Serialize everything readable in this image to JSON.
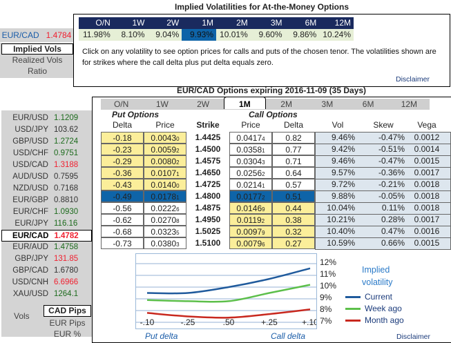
{
  "top": {
    "title": "Implied Volatilities for At-the-Money Options",
    "tenors": [
      "O/N",
      "1W",
      "2W",
      "1M",
      "2M",
      "3M",
      "6M",
      "12M"
    ],
    "vols": [
      "11.98%",
      "8.10%",
      "9.04%",
      "9.93%",
      "10.01%",
      "9.60%",
      "9.86%",
      "10.24%"
    ],
    "selected": "1M",
    "note": "Click on any volatility to see option prices for calls and puts of the chosen tenor. The volatilities shown are for strikes where the call delta plus put delta equals zero.",
    "disclaimer": "Disclaimer"
  },
  "left_top": {
    "pair": "EUR/CAD",
    "rate": "1.4784",
    "menu": [
      "Implied Vols",
      "Realized Vols",
      "Ratio"
    ]
  },
  "options": {
    "title": "EUR/CAD Options expiring 2016-11-09 (35 Days)",
    "tabs": [
      "O/N",
      "1W",
      "2W",
      "1M",
      "2M",
      "3M",
      "6M",
      "12M"
    ],
    "active_tab": "1M",
    "put_label": "Put Options",
    "call_label": "Call Options",
    "headers": {
      "put_delta": "Delta",
      "put_price": "Price",
      "strike": "Strike",
      "call_price": "Price",
      "call_delta": "Delta",
      "vol": "Vol",
      "skew": "Skew",
      "vega": "Vega"
    },
    "rows": [
      {
        "put_delta": "-0.18",
        "put_price": "0.0043",
        "put_price_sub": "0",
        "strike": "1.4425",
        "call_price": "0.0417",
        "call_price_sub": "4",
        "call_delta": "0.82",
        "vol": "9.46%",
        "skew": "-0.47%",
        "vega": "0.0012"
      },
      {
        "put_delta": "-0.23",
        "put_price": "0.0059",
        "put_price_sub": "2",
        "strike": "1.4500",
        "call_price": "0.0358",
        "call_price_sub": "1",
        "call_delta": "0.77",
        "vol": "9.42%",
        "skew": "-0.51%",
        "vega": "0.0014"
      },
      {
        "put_delta": "-0.29",
        "put_price": "0.0080",
        "put_price_sub": "2",
        "strike": "1.4575",
        "call_price": "0.0304",
        "call_price_sub": "3",
        "call_delta": "0.71",
        "vol": "9.46%",
        "skew": "-0.47%",
        "vega": "0.0015"
      },
      {
        "put_delta": "-0.36",
        "put_price": "0.0107",
        "put_price_sub": "1",
        "strike": "1.4650",
        "call_price": "0.0256",
        "call_price_sub": "2",
        "call_delta": "0.64",
        "vol": "9.57%",
        "skew": "-0.36%",
        "vega": "0.0017"
      },
      {
        "put_delta": "-0.43",
        "put_price": "0.0140",
        "put_price_sub": "0",
        "strike": "1.4725",
        "call_price": "0.0214",
        "call_price_sub": "1",
        "call_delta": "0.57",
        "vol": "9.72%",
        "skew": "-0.21%",
        "vega": "0.0018"
      },
      {
        "put_delta": "-0.49",
        "put_price": "0.0178",
        "put_price_sub": "1",
        "strike": "1.4800",
        "call_price": "0.0177",
        "call_price_sub": "2",
        "call_delta": "0.51",
        "vol": "9.88%",
        "skew": "-0.05%",
        "vega": "0.0018"
      },
      {
        "put_delta": "-0.56",
        "put_price": "0.0222",
        "put_price_sub": "6",
        "strike": "1.4875",
        "call_price": "0.0146",
        "call_price_sub": "9",
        "call_delta": "0.44",
        "vol": "10.04%",
        "skew": "0.11%",
        "vega": "0.0018"
      },
      {
        "put_delta": "-0.62",
        "put_price": "0.0270",
        "put_price_sub": "8",
        "strike": "1.4950",
        "call_price": "0.0119",
        "call_price_sub": "2",
        "call_delta": "0.38",
        "vol": "10.21%",
        "skew": "0.28%",
        "vega": "0.0017"
      },
      {
        "put_delta": "-0.68",
        "put_price": "0.0323",
        "put_price_sub": "5",
        "strike": "1.5025",
        "call_price": "0.0097",
        "call_price_sub": "9",
        "call_delta": "0.32",
        "vol": "10.40%",
        "skew": "0.47%",
        "vega": "0.0016"
      },
      {
        "put_delta": "-0.73",
        "put_price": "0.0380",
        "put_price_sub": "3",
        "strike": "1.5100",
        "call_price": "0.0079",
        "call_price_sub": "6",
        "call_delta": "0.27",
        "vol": "10.59%",
        "skew": "0.66%",
        "vega": "0.0015"
      }
    ],
    "disclaimer": "Disclaimer"
  },
  "pairs": [
    {
      "pair": "EUR/USD",
      "rate": "1.1209",
      "dir": "green"
    },
    {
      "pair": "USD/JPY",
      "rate": "103.62",
      "dir": "dark"
    },
    {
      "pair": "GBP/USD",
      "rate": "1.2724",
      "dir": "green"
    },
    {
      "pair": "USD/CHF",
      "rate": "0.9751",
      "dir": "green"
    },
    {
      "pair": "USD/CAD",
      "rate": "1.3188",
      "dir": "red"
    },
    {
      "pair": "AUD/USD",
      "rate": "0.7595",
      "dir": "dark"
    },
    {
      "pair": "NZD/USD",
      "rate": "0.7168",
      "dir": "dark"
    },
    {
      "pair": "EUR/GBP",
      "rate": "0.8810",
      "dir": "dark"
    },
    {
      "pair": "EUR/CHF",
      "rate": "1.0930",
      "dir": "green"
    },
    {
      "pair": "EUR/JPY",
      "rate": "116.16",
      "dir": "green"
    },
    {
      "pair": "EUR/CAD",
      "rate": "1.4782",
      "dir": "red"
    },
    {
      "pair": "EUR/AUD",
      "rate": "1.4758",
      "dir": "green"
    },
    {
      "pair": "GBP/JPY",
      "rate": "131.85",
      "dir": "red"
    },
    {
      "pair": "GBP/CAD",
      "rate": "1.6780",
      "dir": "dark"
    },
    {
      "pair": "USD/CNH",
      "rate": "6.6966",
      "dir": "red"
    },
    {
      "pair": "XAU/USD",
      "rate": "1264.1",
      "dir": "green"
    }
  ],
  "vols_menu": {
    "label": "Vols",
    "items": [
      "CAD Pips",
      "EUR Pips",
      "EUR %"
    ]
  },
  "chart_data": {
    "type": "line",
    "title": "Implied volatility",
    "x": [
      "-.10",
      "-.25",
      ".50",
      "+.25",
      "+.10"
    ],
    "xlabel_left": "Put delta",
    "xlabel_right": "Call delta",
    "ylim": [
      7,
      12
    ],
    "yticks": [
      "12%",
      "11%",
      "10%",
      "9%",
      "8%",
      "7%"
    ],
    "series": [
      {
        "name": "Current",
        "color": "#1f5a9c",
        "values": [
          9.5,
          9.5,
          10.0,
          10.7,
          11.6
        ]
      },
      {
        "name": "Week ago",
        "color": "#5cbf4a",
        "values": [
          8.9,
          8.8,
          8.8,
          9.5,
          10.2
        ]
      },
      {
        "name": "Month ago",
        "color": "#c8281e",
        "values": [
          7.8,
          7.5,
          7.4,
          7.7,
          8.1
        ]
      }
    ],
    "legend": "right"
  }
}
